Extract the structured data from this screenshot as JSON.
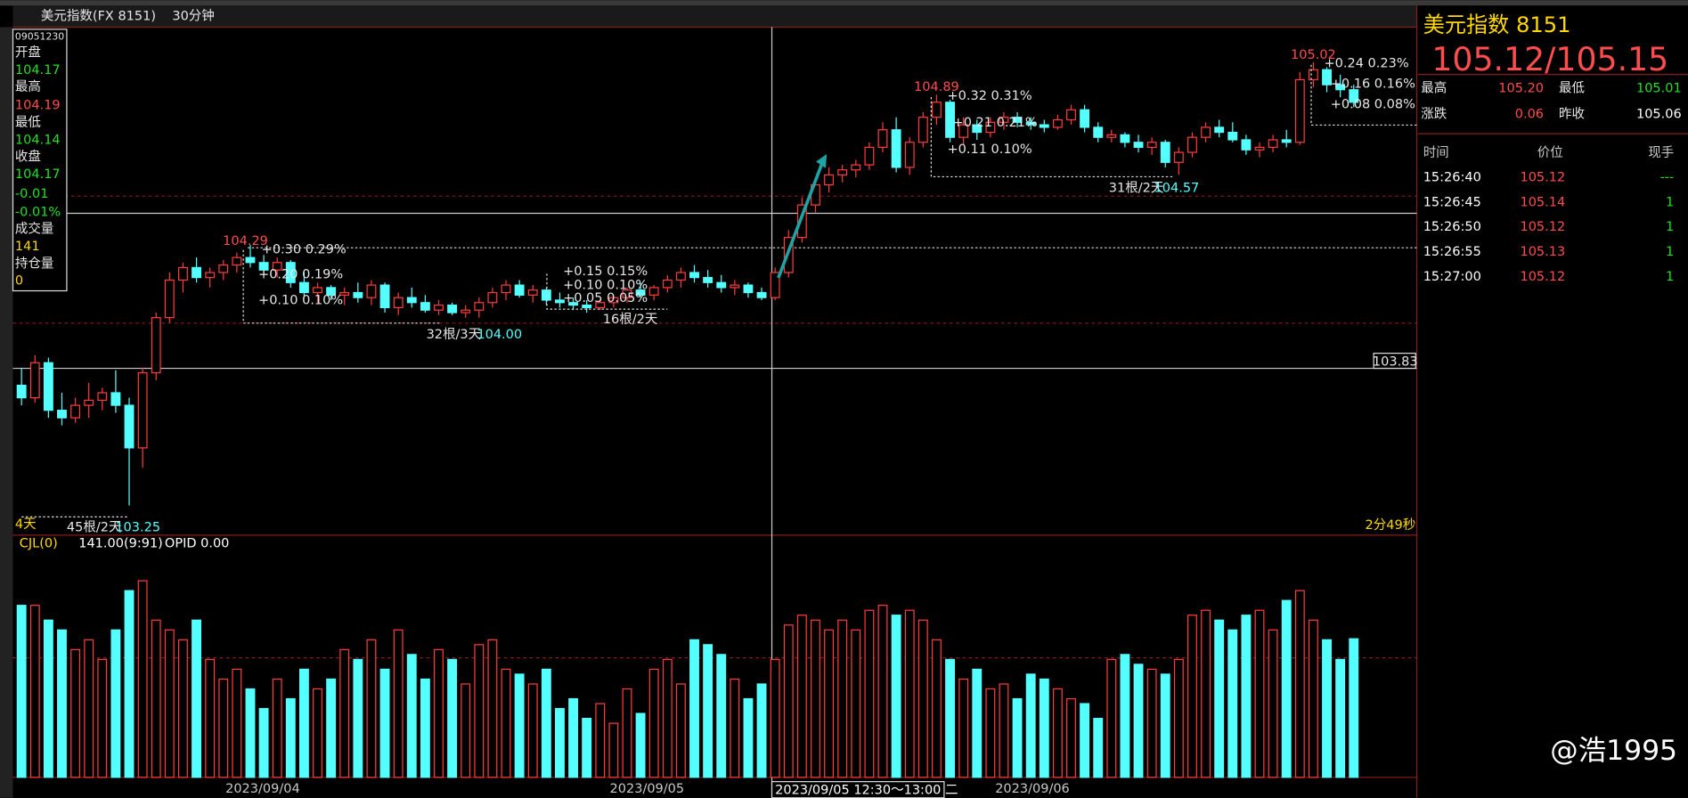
{
  "toolbar": {
    "symbol": "美元指数(FX 8151)",
    "period": "30分钟"
  },
  "info_box": {
    "time": "09051230",
    "open_label": "开盘",
    "open": "104.17",
    "high_label": "最高",
    "high": "104.19",
    "low_label": "最低",
    "low": "104.14",
    "close_label": "收盘",
    "close": "104.17",
    "change": "-0.01",
    "change_pct": "-0.01%",
    "volume_label": "成交量",
    "volume": "141",
    "oi_label": "持仓量",
    "oi": "0"
  },
  "chart_data": {
    "type": "candlestick",
    "ylim": [
      103.14,
      105.16
    ],
    "volume_ylim": [
      0,
      230
    ],
    "up_color": "#ff3c3c",
    "down_color": "#54ffff",
    "candles": [
      [
        103.73,
        103.8,
        103.65,
        103.68
      ],
      [
        103.68,
        103.85,
        103.66,
        103.82
      ],
      [
        103.82,
        103.84,
        103.6,
        103.63
      ],
      [
        103.63,
        103.7,
        103.57,
        103.6
      ],
      [
        103.6,
        103.68,
        103.58,
        103.65
      ],
      [
        103.65,
        103.74,
        103.6,
        103.67
      ],
      [
        103.67,
        103.72,
        103.63,
        103.7
      ],
      [
        103.7,
        103.79,
        103.62,
        103.65
      ],
      [
        103.65,
        103.68,
        103.25,
        103.48
      ],
      [
        103.48,
        103.8,
        103.4,
        103.78
      ],
      [
        103.78,
        104.02,
        103.75,
        104.0
      ],
      [
        104.0,
        104.18,
        103.98,
        104.15
      ],
      [
        104.15,
        104.22,
        104.1,
        104.2
      ],
      [
        104.2,
        104.24,
        104.14,
        104.16
      ],
      [
        104.16,
        104.2,
        104.12,
        104.18
      ],
      [
        104.18,
        104.23,
        104.15,
        104.21
      ],
      [
        104.21,
        104.26,
        104.18,
        104.24
      ],
      [
        104.24,
        104.29,
        104.2,
        104.22
      ],
      [
        104.22,
        104.25,
        104.17,
        104.19
      ],
      [
        104.19,
        104.24,
        104.16,
        104.22
      ],
      [
        104.22,
        104.23,
        104.12,
        104.14
      ],
      [
        104.14,
        104.18,
        104.08,
        104.1
      ],
      [
        104.1,
        104.14,
        104.06,
        104.12
      ],
      [
        104.12,
        104.13,
        104.07,
        104.09
      ],
      [
        104.09,
        104.12,
        104.05,
        104.1
      ],
      [
        104.1,
        104.14,
        104.06,
        104.08
      ],
      [
        104.08,
        104.15,
        104.05,
        104.13
      ],
      [
        104.13,
        104.14,
        104.02,
        104.04
      ],
      [
        104.04,
        104.1,
        104.01,
        104.08
      ],
      [
        104.08,
        104.12,
        104.04,
        104.06
      ],
      [
        104.06,
        104.09,
        104.02,
        104.03
      ],
      [
        104.03,
        104.07,
        104.01,
        104.05
      ],
      [
        104.05,
        104.06,
        104.01,
        104.02
      ],
      [
        104.02,
        104.05,
        104.0,
        104.03
      ],
      [
        104.03,
        104.08,
        104.0,
        104.06
      ],
      [
        104.06,
        104.12,
        104.04,
        104.1
      ],
      [
        104.1,
        104.15,
        104.07,
        104.13
      ],
      [
        104.13,
        104.15,
        104.08,
        104.09
      ],
      [
        104.09,
        104.13,
        104.06,
        104.11
      ],
      [
        104.11,
        104.12,
        104.05,
        104.07
      ],
      [
        104.07,
        104.1,
        104.04,
        104.06
      ],
      [
        104.06,
        104.08,
        104.03,
        104.05
      ],
      [
        104.05,
        104.07,
        104.02,
        104.04
      ],
      [
        104.04,
        104.07,
        104.03,
        104.06
      ],
      [
        104.06,
        104.09,
        104.04,
        104.08
      ],
      [
        104.08,
        104.12,
        104.06,
        104.11
      ],
      [
        104.11,
        104.14,
        104.08,
        104.09
      ],
      [
        104.09,
        104.13,
        104.07,
        104.12
      ],
      [
        104.12,
        104.17,
        104.1,
        104.15
      ],
      [
        104.15,
        104.2,
        104.12,
        104.18
      ],
      [
        104.18,
        104.21,
        104.14,
        104.16
      ],
      [
        104.16,
        104.19,
        104.12,
        104.14
      ],
      [
        104.14,
        104.17,
        104.1,
        104.12
      ],
      [
        104.12,
        104.15,
        104.09,
        104.13
      ],
      [
        104.13,
        104.14,
        104.08,
        104.1
      ],
      [
        104.1,
        104.12,
        104.07,
        104.08
      ],
      [
        104.08,
        104.2,
        104.07,
        104.18
      ],
      [
        104.18,
        104.35,
        104.16,
        104.32
      ],
      [
        104.32,
        104.48,
        104.3,
        104.45
      ],
      [
        104.45,
        104.56,
        104.42,
        104.53
      ],
      [
        104.53,
        104.6,
        104.5,
        104.57
      ],
      [
        104.57,
        104.61,
        104.54,
        104.59
      ],
      [
        104.59,
        104.63,
        104.56,
        104.61
      ],
      [
        104.61,
        104.7,
        104.59,
        104.68
      ],
      [
        104.68,
        104.78,
        104.66,
        104.75
      ],
      [
        104.75,
        104.8,
        104.58,
        104.6
      ],
      [
        104.6,
        104.72,
        104.57,
        104.7
      ],
      [
        104.7,
        104.82,
        104.68,
        104.8
      ],
      [
        104.8,
        104.89,
        104.77,
        104.86
      ],
      [
        104.86,
        104.87,
        104.7,
        104.72
      ],
      [
        104.72,
        104.8,
        104.69,
        104.77
      ],
      [
        104.77,
        104.79,
        104.71,
        104.74
      ],
      [
        104.74,
        104.8,
        104.72,
        104.78
      ],
      [
        104.78,
        104.82,
        104.75,
        104.8
      ],
      [
        104.8,
        104.82,
        104.76,
        104.78
      ],
      [
        104.78,
        104.8,
        104.75,
        104.77
      ],
      [
        104.77,
        104.79,
        104.74,
        104.76
      ],
      [
        104.76,
        104.81,
        104.75,
        104.79
      ],
      [
        104.79,
        104.85,
        104.77,
        104.83
      ],
      [
        104.83,
        104.85,
        104.74,
        104.76
      ],
      [
        104.76,
        104.78,
        104.7,
        104.72
      ],
      [
        104.72,
        104.75,
        104.7,
        104.73
      ],
      [
        104.73,
        104.74,
        104.68,
        104.7
      ],
      [
        104.7,
        104.73,
        104.66,
        104.68
      ],
      [
        104.68,
        104.72,
        104.65,
        104.7
      ],
      [
        104.7,
        104.71,
        104.6,
        104.62
      ],
      [
        104.62,
        104.68,
        104.57,
        104.66
      ],
      [
        104.66,
        104.74,
        104.64,
        104.72
      ],
      [
        104.72,
        104.78,
        104.7,
        104.76
      ],
      [
        104.76,
        104.79,
        104.72,
        104.74
      ],
      [
        104.74,
        104.78,
        104.7,
        104.71
      ],
      [
        104.71,
        104.73,
        104.65,
        104.67
      ],
      [
        104.67,
        104.7,
        104.64,
        104.68
      ],
      [
        104.68,
        104.73,
        104.66,
        104.71
      ],
      [
        104.71,
        104.75,
        104.68,
        104.7
      ],
      [
        104.7,
        104.98,
        104.69,
        104.95
      ],
      [
        104.95,
        105.02,
        104.92,
        104.99
      ],
      [
        104.99,
        105.0,
        104.9,
        104.93
      ],
      [
        104.93,
        104.97,
        104.88,
        104.91
      ],
      [
        104.91,
        104.93,
        104.84,
        104.86
      ]
    ],
    "volume": [
      175,
      175,
      160,
      150,
      130,
      140,
      120,
      150,
      190,
      200,
      160,
      150,
      140,
      160,
      120,
      100,
      110,
      90,
      70,
      100,
      80,
      110,
      90,
      100,
      130,
      120,
      140,
      110,
      150,
      125,
      100,
      130,
      120,
      95,
      135,
      140,
      110,
      105,
      95,
      110,
      70,
      80,
      60,
      75,
      55,
      90,
      65,
      110,
      120,
      95,
      140,
      135,
      125,
      100,
      80,
      95,
      120,
      155,
      165,
      160,
      150,
      160,
      150,
      170,
      175,
      165,
      170,
      160,
      140,
      120,
      100,
      110,
      90,
      95,
      80,
      105,
      100,
      90,
      80,
      75,
      60,
      120,
      125,
      115,
      110,
      105,
      120,
      165,
      170,
      160,
      150,
      165,
      170,
      150,
      180,
      190,
      160,
      140,
      120,
      141
    ]
  },
  "annotations": {
    "a1_high": "104.29",
    "a1_l1": "+0.30  0.29%",
    "a1_l2": "+0.20  0.19%",
    "a1_l3": "+0.10  0.10%",
    "a2_count": "32根/3天",
    "a2_low": "104.00",
    "a3_l1": "+0.15  0.15%",
    "a3_l2": "+0.10  0.10%",
    "a3_l3": "+0.05  0.05%",
    "a3_count": "16根/2天",
    "a4_high": "104.89",
    "a4_l1": "+0.32  0.31%",
    "a4_l2": "+0.21  0.21%",
    "a4_l3": "+0.11  0.10%",
    "a5_count": "31根/2天",
    "a5_low": "104.57",
    "a6_high": "105.02",
    "a6_l1": "+0.24  0.23%",
    "a6_l2": "+0.16  0.16%",
    "a6_l3": "+0.08  0.08%",
    "cursor_price": "103.83",
    "days": "4天",
    "a0_count": "45根/2天",
    "a0_low": "103.25",
    "countdown": "2分49秒"
  },
  "volume_panel": {
    "name": "CJL(0)",
    "value": "141.00(9:91)",
    "opid": "OPID 0.00"
  },
  "x_axis_labels": [
    "2023/09/04",
    "2023/09/05",
    "2023/09/06"
  ],
  "cursor_time": "2023/09/05 12:30～13:00 二",
  "quote_panel": {
    "title": "美元指数  8151",
    "price": "105.12/105.15",
    "high_label": "最高",
    "high": "105.20",
    "low_label": "最低",
    "low": "105.01",
    "change_label": "涨跌",
    "change": "0.06",
    "prev_label": "昨收",
    "prev": "105.06",
    "headers": [
      "时间",
      "价位",
      "现手"
    ],
    "rows": [
      [
        "15:26:40",
        "105.12",
        "---"
      ],
      [
        "15:26:45",
        "105.14",
        "1"
      ],
      [
        "15:26:50",
        "105.12",
        "1"
      ],
      [
        "15:26:55",
        "105.13",
        "1"
      ],
      [
        "15:27:00",
        "105.12",
        "1"
      ]
    ]
  },
  "watermark": "@浩1995"
}
